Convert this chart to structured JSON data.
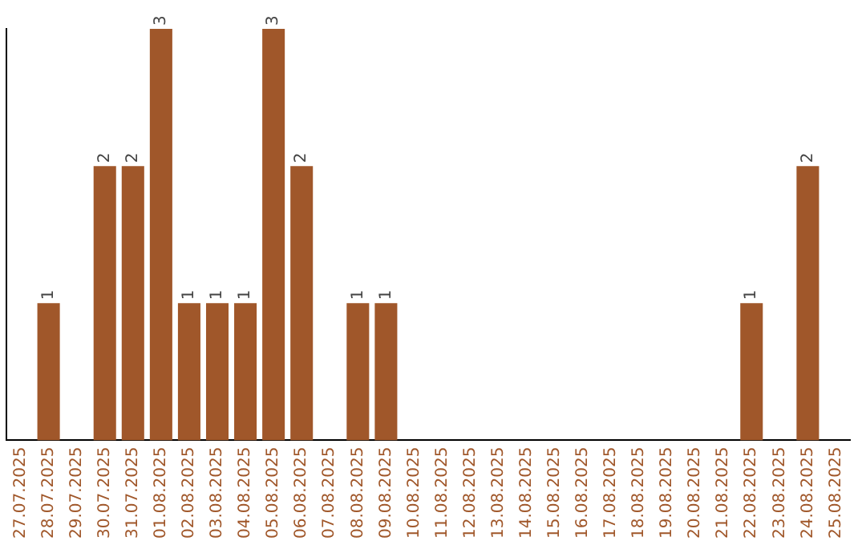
{
  "chart_data": {
    "type": "bar",
    "categories": [
      "27.07.2025",
      "28.07.2025",
      "29.07.2025",
      "30.07.2025",
      "31.07.2025",
      "01.08.2025",
      "02.08.2025",
      "03.08.2025",
      "04.08.2025",
      "05.08.2025",
      "06.08.2025",
      "07.08.2025",
      "08.08.2025",
      "09.08.2025",
      "10.08.2025",
      "11.08.2025",
      "12.08.2025",
      "13.08.2025",
      "14.08.2025",
      "15.08.2025",
      "16.08.2025",
      "17.08.2025",
      "18.08.2025",
      "19.08.2025",
      "20.08.2025",
      "21.08.2025",
      "22.08.2025",
      "23.08.2025",
      "24.08.2025",
      "25.08.2025"
    ],
    "values": [
      0,
      1,
      0,
      2,
      2,
      3,
      1,
      1,
      1,
      3,
      2,
      0,
      1,
      1,
      0,
      0,
      0,
      0,
      0,
      0,
      0,
      0,
      0,
      0,
      0,
      0,
      1,
      0,
      2,
      0
    ],
    "value_labels": [
      null,
      "1",
      null,
      "2",
      "2",
      "3",
      "1",
      "1",
      "1",
      "3",
      "2",
      null,
      "1",
      "1",
      null,
      null,
      null,
      null,
      null,
      null,
      null,
      null,
      null,
      null,
      null,
      null,
      "1",
      null,
      "2",
      null
    ],
    "color": "#a0572a",
    "tick_labels": "x",
    "grid": false
  }
}
